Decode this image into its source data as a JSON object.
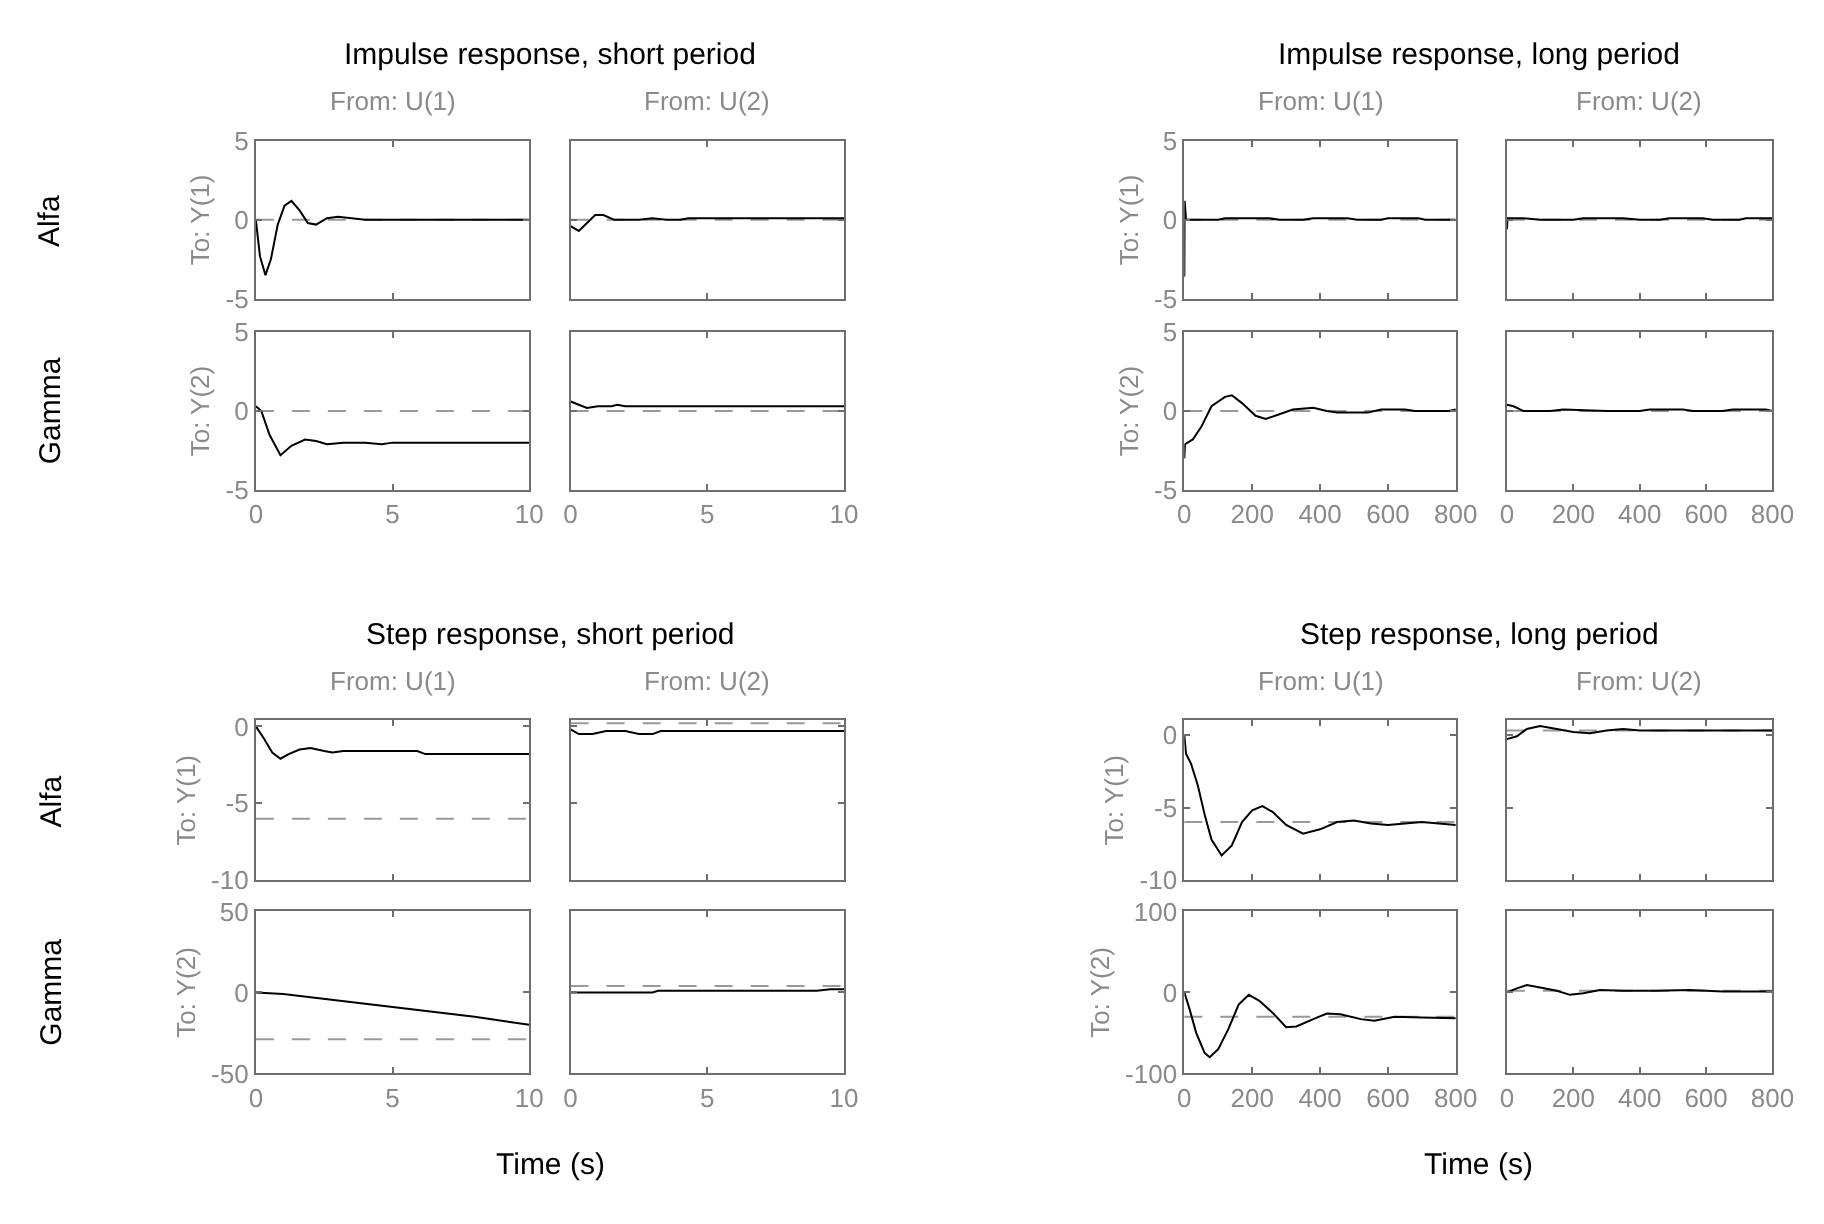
{
  "chart_data": [
    {
      "type": "line",
      "title": "Impulse response, short period",
      "subtitle": "From: U(1)",
      "ylabel": "To: Y(1)",
      "annotations": [
        "Alfa"
      ],
      "tick_labels": "y",
      "xlim": [
        0,
        10
      ],
      "xticks": [
        0,
        5,
        10
      ],
      "ylim": [
        -5,
        5
      ],
      "yticks": [
        -5,
        0,
        5
      ],
      "ref_lines": [
        {
          "axis": "y",
          "value": 0,
          "color": "#999999",
          "line_style": "dashed"
        }
      ],
      "series": [
        {
          "color": "#000000",
          "x": [
            0,
            0.15,
            0.35,
            0.55,
            0.8,
            1.05,
            1.3,
            1.6,
            1.9,
            2.2,
            2.6,
            3.0,
            3.5,
            4,
            10
          ],
          "values": [
            0,
            -2.3,
            -3.5,
            -2.5,
            -0.3,
            0.9,
            1.2,
            0.6,
            -0.2,
            -0.3,
            0.1,
            0.2,
            0.1,
            0,
            0
          ]
        }
      ]
    },
    {
      "type": "line",
      "subtitle": "From: U(2)",
      "tick_labels": false,
      "xlim": [
        0,
        10
      ],
      "xticks": [
        0,
        5,
        10
      ],
      "ylim": [
        -5,
        5
      ],
      "yticks": [
        -5,
        0,
        5
      ],
      "ref_lines": [
        {
          "axis": "y",
          "value": 0,
          "color": "#999999",
          "line_style": "dashed"
        }
      ],
      "series": [
        {
          "color": "#000000",
          "x": [
            0,
            0.3,
            0.6,
            0.9,
            1.2,
            1.6,
            2.5,
            3.0,
            3.5,
            4,
            4.3,
            10
          ],
          "values": [
            -0.4,
            -0.7,
            -0.2,
            0.3,
            0.3,
            0,
            0,
            0.1,
            0,
            0,
            0.1,
            0.1
          ]
        }
      ]
    },
    {
      "type": "line",
      "ylabel": "To: Y(2)",
      "annotations": [
        "Gamma"
      ],
      "xlim": [
        0,
        10
      ],
      "xticks": [
        0,
        5,
        10
      ],
      "ylim": [
        -5,
        5
      ],
      "yticks": [
        -5,
        0,
        5
      ],
      "ref_lines": [
        {
          "axis": "y",
          "value": 0,
          "color": "#999999",
          "line_style": "dashed"
        }
      ],
      "series": [
        {
          "color": "#000000",
          "x": [
            0,
            0.2,
            0.5,
            0.9,
            1.3,
            1.8,
            2.2,
            2.6,
            3.2,
            4,
            4.6,
            5,
            10
          ],
          "values": [
            0.3,
            0,
            -1.5,
            -2.8,
            -2.2,
            -1.8,
            -1.9,
            -2.1,
            -2.0,
            -2.0,
            -2.1,
            -2.0,
            -2.0
          ]
        }
      ]
    },
    {
      "type": "line",
      "tick_labels": "x",
      "xlim": [
        0,
        10
      ],
      "xticks": [
        0,
        5,
        10
      ],
      "ylim": [
        -5,
        5
      ],
      "yticks": [
        -5,
        0,
        5
      ],
      "ref_lines": [
        {
          "axis": "y",
          "value": 0,
          "color": "#999999",
          "line_style": "dashed"
        }
      ],
      "series": [
        {
          "color": "#000000",
          "x": [
            0,
            0.3,
            0.6,
            1,
            1.5,
            1.7,
            2,
            10
          ],
          "values": [
            0.6,
            0.4,
            0.2,
            0.3,
            0.3,
            0.4,
            0.3,
            0.3
          ]
        }
      ]
    },
    {
      "type": "line",
      "title": "Impulse response, long period",
      "subtitle": "From: U(1)",
      "ylabel": "To: Y(1)",
      "tick_labels": "y",
      "xlim": [
        0,
        800
      ],
      "xticks": [
        0,
        200,
        400,
        600,
        800
      ],
      "ylim": [
        -5,
        5
      ],
      "yticks": [
        -5,
        0,
        5
      ],
      "ref_lines": [
        {
          "axis": "y",
          "value": 0,
          "color": "#999999",
          "line_style": "dashed"
        }
      ],
      "series": [
        {
          "color": "#000000",
          "x": [
            0,
            1,
            5,
            100,
            120,
            250,
            280,
            350,
            380,
            480,
            510,
            580,
            600,
            690,
            710,
            800
          ],
          "values": [
            -3.6,
            1.2,
            0,
            0,
            0.1,
            0.1,
            0,
            0,
            0.1,
            0.1,
            0,
            0,
            0.1,
            0.1,
            0,
            0
          ]
        }
      ]
    },
    {
      "type": "line",
      "subtitle": "From: U(2)",
      "tick_labels": false,
      "xlim": [
        0,
        800
      ],
      "xticks": [
        0,
        200,
        400,
        600,
        800
      ],
      "ylim": [
        -5,
        5
      ],
      "yticks": [
        -5,
        0,
        5
      ],
      "ref_lines": [
        {
          "axis": "y",
          "value": 0,
          "color": "#999999",
          "line_style": "dashed"
        }
      ],
      "series": [
        {
          "color": "#000000",
          "x": [
            0,
            2,
            50,
            100,
            200,
            230,
            350,
            400,
            460,
            490,
            590,
            620,
            700,
            720,
            800
          ],
          "values": [
            -0.6,
            0.1,
            0.1,
            0,
            0,
            0.1,
            0.1,
            0,
            0,
            0.1,
            0.1,
            0,
            0,
            0.1,
            0.1
          ]
        }
      ]
    },
    {
      "type": "line",
      "ylabel": "To: Y(2)",
      "xlim": [
        0,
        800
      ],
      "xticks": [
        0,
        200,
        400,
        600,
        800
      ],
      "ylim": [
        -5,
        5
      ],
      "yticks": [
        -5,
        0,
        5
      ],
      "ref_lines": [
        {
          "axis": "y",
          "value": 0,
          "color": "#999999",
          "line_style": "dashed"
        }
      ],
      "series": [
        {
          "color": "#000000",
          "x": [
            0,
            2,
            25,
            50,
            80,
            120,
            140,
            170,
            210,
            240,
            280,
            320,
            380,
            420,
            450,
            540,
            580,
            650,
            680,
            780,
            800
          ],
          "values": [
            -3,
            -2.1,
            -1.8,
            -1,
            0.3,
            0.9,
            1,
            0.5,
            -0.3,
            -0.5,
            -0.2,
            0.1,
            0.2,
            0,
            -0.1,
            -0.1,
            0.1,
            0.1,
            0,
            0,
            0.1
          ]
        }
      ]
    },
    {
      "type": "line",
      "tick_labels": "x",
      "xlim": [
        0,
        800
      ],
      "xticks": [
        0,
        200,
        400,
        600,
        800
      ],
      "ylim": [
        -5,
        5
      ],
      "yticks": [
        -5,
        0,
        5
      ],
      "ref_lines": [
        {
          "axis": "y",
          "value": 0,
          "color": "#999999",
          "line_style": "dashed"
        }
      ],
      "series": [
        {
          "color": "#000000",
          "x": [
            0,
            20,
            50,
            130,
            170,
            300,
            400,
            430,
            530,
            560,
            650,
            680,
            780,
            800
          ],
          "values": [
            0.4,
            0.3,
            0,
            0,
            0.1,
            0,
            0,
            0.1,
            0.1,
            0,
            0,
            0.1,
            0.1,
            0
          ]
        }
      ]
    },
    {
      "type": "line",
      "title": "Step response, short period",
      "subtitle": "From: U(1)",
      "ylabel": "To: Y(1)",
      "annotations": [
        "Alfa"
      ],
      "tick_labels": "y",
      "xlim": [
        0,
        10
      ],
      "xticks": [
        0,
        5,
        10
      ],
      "ylim": [
        -10,
        0.4
      ],
      "yticks": [
        -10,
        -5,
        0
      ],
      "ref_lines": [
        {
          "axis": "y",
          "value": -6,
          "color": "#999999",
          "line_style": "dashed"
        }
      ],
      "series": [
        {
          "color": "#000000",
          "x": [
            0,
            0.3,
            0.6,
            0.9,
            1.2,
            1.6,
            2.0,
            2.5,
            2.8,
            3.2,
            4,
            5.9,
            6.2,
            10
          ],
          "values": [
            0,
            -0.8,
            -1.7,
            -2.1,
            -1.8,
            -1.5,
            -1.4,
            -1.6,
            -1.7,
            -1.6,
            -1.6,
            -1.6,
            -1.8,
            -1.8
          ]
        }
      ]
    },
    {
      "type": "line",
      "subtitle": "From: U(2)",
      "tick_labels": false,
      "xlim": [
        0,
        10
      ],
      "xticks": [
        0,
        5,
        10
      ],
      "ylim": [
        -10,
        0.4
      ],
      "yticks": [
        -10,
        -5,
        0
      ],
      "ref_lines": [
        {
          "axis": "y",
          "value": 0.2,
          "color": "#999999",
          "line_style": "dashed"
        }
      ],
      "series": [
        {
          "color": "#000000",
          "x": [
            0,
            0.3,
            0.8,
            1.3,
            2,
            2.5,
            3,
            3.3,
            10
          ],
          "values": [
            -0.2,
            -0.5,
            -0.5,
            -0.3,
            -0.3,
            -0.5,
            -0.5,
            -0.3,
            -0.3
          ]
        }
      ]
    },
    {
      "type": "line",
      "ylabel": "To: Y(2)",
      "xlabel": "Time (s)",
      "annotations": [
        "Gamma"
      ],
      "xlim": [
        0,
        10
      ],
      "xticks": [
        0,
        5,
        10
      ],
      "ylim": [
        -50,
        50
      ],
      "yticks": [
        -50,
        0,
        50
      ],
      "ref_lines": [
        {
          "axis": "y",
          "value": -29,
          "color": "#999999",
          "line_style": "dashed"
        }
      ],
      "series": [
        {
          "color": "#000000",
          "x": [
            0,
            1,
            2,
            4,
            6,
            8,
            10
          ],
          "values": [
            0,
            -1,
            -3,
            -7,
            -11,
            -15,
            -20
          ]
        }
      ]
    },
    {
      "type": "line",
      "tick_labels": "x",
      "xlim": [
        0,
        10
      ],
      "xticks": [
        0,
        5,
        10
      ],
      "ylim": [
        -50,
        50
      ],
      "yticks": [
        -50,
        0,
        50
      ],
      "ref_lines": [
        {
          "axis": "y",
          "value": 4,
          "color": "#999999",
          "line_style": "dashed"
        }
      ],
      "series": [
        {
          "color": "#000000",
          "x": [
            0,
            3,
            3.2,
            9,
            9.5,
            10
          ],
          "values": [
            0,
            0,
            1,
            1,
            2,
            2
          ]
        }
      ]
    },
    {
      "type": "line",
      "title": "Step response, long period",
      "subtitle": "From: U(1)",
      "ylabel": "To: Y(1)",
      "tick_labels": "y",
      "xlim": [
        0,
        800
      ],
      "xticks": [
        0,
        200,
        400,
        600,
        800
      ],
      "ylim": [
        -10,
        1
      ],
      "yticks": [
        -10,
        -5,
        0
      ],
      "ref_lines": [
        {
          "axis": "y",
          "value": -6,
          "color": "#999999",
          "line_style": "dashed"
        }
      ],
      "series": [
        {
          "color": "#000000",
          "x": [
            0,
            5,
            20,
            40,
            60,
            80,
            110,
            140,
            170,
            200,
            230,
            260,
            300,
            350,
            400,
            450,
            500,
            550,
            600,
            700,
            800
          ],
          "values": [
            0,
            -1.3,
            -2,
            -3.5,
            -5.5,
            -7.2,
            -8.3,
            -7.6,
            -6,
            -5.2,
            -4.9,
            -5.3,
            -6.2,
            -6.8,
            -6.5,
            -6,
            -5.9,
            -6.1,
            -6.2,
            -6,
            -6.2
          ]
        }
      ]
    },
    {
      "type": "line",
      "subtitle": "From: U(2)",
      "tick_labels": false,
      "xlim": [
        0,
        800
      ],
      "xticks": [
        0,
        200,
        400,
        600,
        800
      ],
      "ylim": [
        -10,
        1
      ],
      "yticks": [
        -10,
        -5,
        0
      ],
      "ref_lines": [
        {
          "axis": "y",
          "value": 0.3,
          "color": "#999999",
          "line_style": "dashed"
        }
      ],
      "series": [
        {
          "color": "#000000",
          "x": [
            0,
            30,
            60,
            100,
            150,
            200,
            250,
            300,
            350,
            400,
            500,
            800
          ],
          "values": [
            -0.3,
            -0.1,
            0.4,
            0.6,
            0.4,
            0.2,
            0.1,
            0.3,
            0.4,
            0.3,
            0.3,
            0.3
          ]
        }
      ]
    },
    {
      "type": "line",
      "ylabel": "To: Y(2)",
      "xlabel": "Time (s)",
      "xlim": [
        0,
        800
      ],
      "xticks": [
        0,
        200,
        400,
        600,
        800
      ],
      "ylim": [
        -100,
        100
      ],
      "yticks": [
        -100,
        0,
        100
      ],
      "ref_lines": [
        {
          "axis": "y",
          "value": -30,
          "color": "#999999",
          "line_style": "dashed"
        }
      ],
      "series": [
        {
          "color": "#000000",
          "x": [
            0,
            15,
            35,
            60,
            75,
            100,
            130,
            160,
            190,
            220,
            260,
            300,
            330,
            380,
            420,
            460,
            520,
            560,
            620,
            700,
            800
          ],
          "values": [
            0,
            -20,
            -50,
            -75,
            -80,
            -70,
            -45,
            -15,
            -3,
            -10,
            -25,
            -43,
            -42,
            -33,
            -26,
            -27,
            -33,
            -35,
            -30,
            -31,
            -32
          ]
        }
      ]
    },
    {
      "type": "line",
      "tick_labels": "x",
      "xlim": [
        0,
        800
      ],
      "xticks": [
        0,
        200,
        400,
        600,
        800
      ],
      "ylim": [
        -100,
        100
      ],
      "yticks": [
        -100,
        0,
        100
      ],
      "ref_lines": [
        {
          "axis": "y",
          "value": 2,
          "color": "#999999",
          "line_style": "dashed"
        }
      ],
      "series": [
        {
          "color": "#000000",
          "x": [
            0,
            30,
            60,
            100,
            150,
            190,
            230,
            280,
            350,
            450,
            550,
            650,
            800
          ],
          "values": [
            0,
            5,
            9,
            6,
            2,
            -3,
            -1,
            3,
            2,
            2,
            3,
            1,
            1
          ]
        }
      ]
    }
  ]
}
